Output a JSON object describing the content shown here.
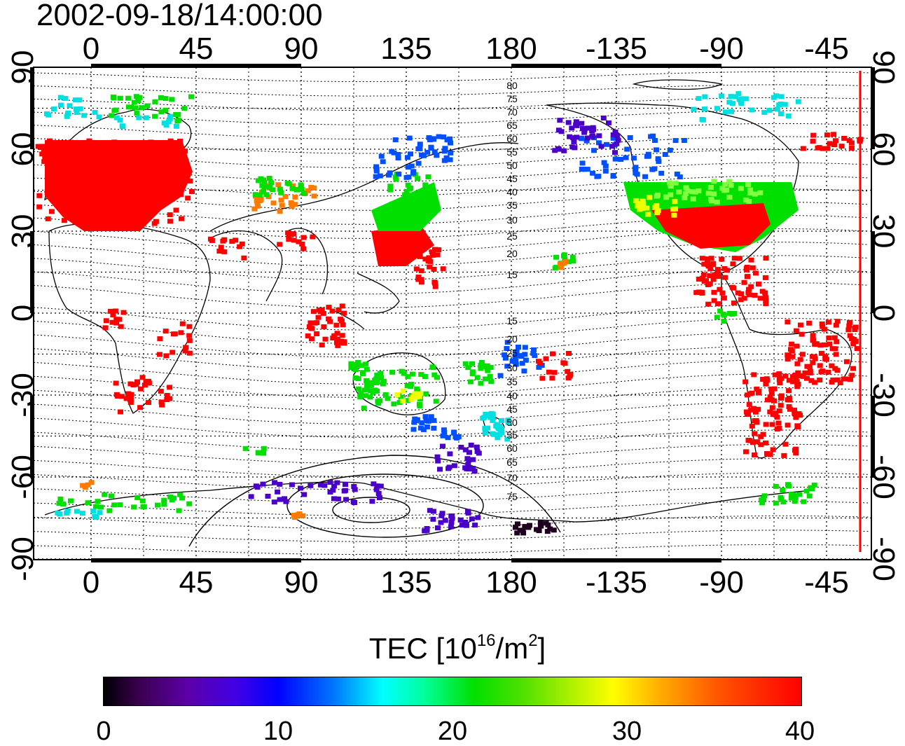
{
  "title": "2002-09-18/14:00:00",
  "axes": {
    "lon_ticks": [
      "0",
      "45",
      "90",
      "135",
      "180",
      "-135",
      "-90",
      "-45"
    ],
    "lat_ticks": [
      "90",
      "60",
      "30",
      "0",
      "-30",
      "-60",
      "-90"
    ],
    "lat_values": [
      90,
      60,
      30,
      0,
      -30,
      -60,
      -90
    ]
  },
  "contour_labels": {
    "north": [
      "80",
      "75",
      "70",
      "65",
      "60",
      "55",
      "50",
      "45",
      "40",
      "35",
      "30",
      "25",
      "20",
      "15"
    ],
    "south": [
      "15",
      "20",
      "25",
      "30",
      "35",
      "40",
      "45",
      "50",
      "55",
      "60",
      "65",
      "70",
      "75"
    ]
  },
  "colorbar": {
    "label_main": "TEC  [10",
    "label_exp1": "16",
    "label_mid": "/m",
    "label_exp2": "2",
    "label_end": "]",
    "ticks": [
      "0",
      "10",
      "20",
      "30",
      "40"
    ],
    "range": [
      0,
      40
    ]
  },
  "colors": {
    "high": "#ff0000",
    "mid": "#00e000",
    "low": "#0000ff",
    "marker_line": "#ff0000"
  }
}
